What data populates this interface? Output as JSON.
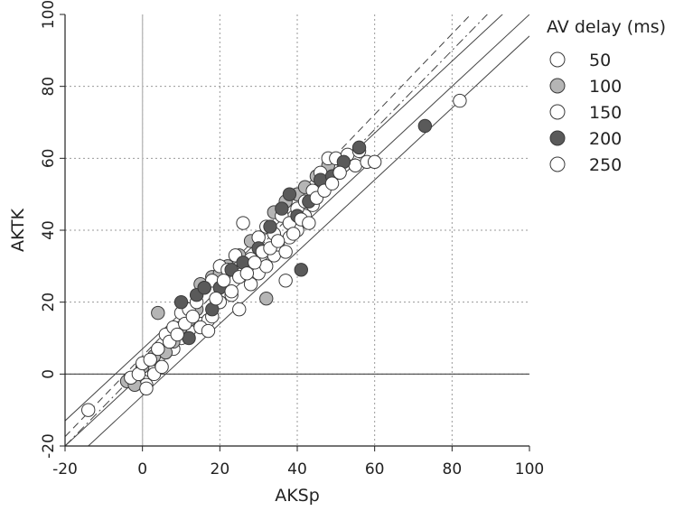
{
  "chart_data": {
    "type": "scatter",
    "title": "",
    "xlabel": "AKSp",
    "ylabel": "AKTK",
    "xlim": [
      -20,
      100
    ],
    "ylim": [
      -20,
      100
    ],
    "x_ticks": [
      -20,
      0,
      20,
      40,
      60,
      80,
      100
    ],
    "y_ticks": [
      -20,
      0,
      20,
      40,
      60,
      80,
      100
    ],
    "x_tick_labels": [
      "-20",
      "0",
      "20",
      "40",
      "60",
      "80",
      "100"
    ],
    "y_tick_labels": [
      "-20",
      "0",
      "20",
      "40",
      "60",
      "80",
      "100"
    ],
    "grid": true,
    "reference_lines": {
      "zero_x": 0,
      "zero_y": 0,
      "parallel_lines": [
        {
          "slope": 1.0,
          "intercept": 0,
          "style": "solid"
        },
        {
          "slope": 1.0,
          "intercept": 7,
          "style": "solid"
        },
        {
          "slope": 1.0,
          "intercept": -6,
          "style": "solid"
        },
        {
          "slope": 1.12,
          "intercept": 5,
          "style": "dashed"
        },
        {
          "slope": 1.1,
          "intercept": 2,
          "style": "dash-dot"
        }
      ]
    },
    "legend": {
      "title": "AV delay (ms)",
      "position": "top-right outside",
      "entries": [
        "50",
        "100",
        "150",
        "200",
        "250"
      ]
    },
    "colors": {
      "50": "#ffffff",
      "100": "#b5b5b5",
      "150": "#ffffff",
      "200": "#5a5a5a",
      "250": "#ffffff"
    },
    "series": [
      {
        "name": "50",
        "points": [
          [
            -14,
            -10
          ],
          [
            1,
            -3
          ],
          [
            2,
            1
          ],
          [
            4,
            4
          ],
          [
            6,
            6
          ],
          [
            8,
            7
          ],
          [
            10,
            10
          ],
          [
            12,
            12
          ],
          [
            15,
            14
          ],
          [
            17,
            15
          ],
          [
            18,
            16
          ],
          [
            20,
            20
          ],
          [
            23,
            22
          ],
          [
            25,
            18
          ],
          [
            28,
            25
          ],
          [
            30,
            28
          ],
          [
            32,
            30
          ],
          [
            34,
            33
          ],
          [
            35,
            36
          ],
          [
            37,
            26
          ],
          [
            38,
            38
          ],
          [
            40,
            40
          ],
          [
            42,
            44
          ],
          [
            44,
            47
          ],
          [
            46,
            52
          ],
          [
            48,
            54
          ],
          [
            50,
            57
          ],
          [
            52,
            58
          ],
          [
            55,
            58
          ],
          [
            58,
            59
          ],
          [
            60,
            59
          ],
          [
            82,
            76
          ]
        ]
      },
      {
        "name": "100",
        "points": [
          [
            -4,
            -2
          ],
          [
            -2,
            -3
          ],
          [
            0,
            2
          ],
          [
            3,
            5
          ],
          [
            4,
            17
          ],
          [
            6,
            6
          ],
          [
            8,
            9
          ],
          [
            10,
            13
          ],
          [
            12,
            15
          ],
          [
            14,
            18
          ],
          [
            15,
            25
          ],
          [
            18,
            27
          ],
          [
            20,
            28
          ],
          [
            22,
            30
          ],
          [
            25,
            33
          ],
          [
            28,
            37
          ],
          [
            32,
            21
          ],
          [
            34,
            45
          ],
          [
            37,
            48
          ],
          [
            40,
            50
          ],
          [
            42,
            52
          ],
          [
            45,
            55
          ],
          [
            48,
            58
          ]
        ]
      },
      {
        "name": "150",
        "points": [
          [
            -3,
            -1
          ],
          [
            -1,
            0
          ],
          [
            0,
            3
          ],
          [
            2,
            4
          ],
          [
            4,
            7
          ],
          [
            6,
            11
          ],
          [
            8,
            13
          ],
          [
            10,
            17
          ],
          [
            12,
            18
          ],
          [
            14,
            20
          ],
          [
            16,
            24
          ],
          [
            18,
            26
          ],
          [
            20,
            30
          ],
          [
            22,
            29
          ],
          [
            24,
            33
          ],
          [
            26,
            42
          ],
          [
            28,
            32
          ],
          [
            30,
            38
          ],
          [
            32,
            41
          ],
          [
            34,
            39
          ],
          [
            36,
            44
          ],
          [
            38,
            42
          ],
          [
            40,
            46
          ],
          [
            42,
            48
          ],
          [
            44,
            51
          ],
          [
            46,
            56
          ],
          [
            48,
            60
          ],
          [
            50,
            60
          ],
          [
            53,
            61
          ],
          [
            56,
            62
          ]
        ]
      },
      {
        "name": "200",
        "points": [
          [
            10,
            20
          ],
          [
            12,
            10
          ],
          [
            14,
            22
          ],
          [
            16,
            24
          ],
          [
            18,
            18
          ],
          [
            20,
            24
          ],
          [
            23,
            29
          ],
          [
            26,
            31
          ],
          [
            30,
            35
          ],
          [
            33,
            41
          ],
          [
            36,
            46
          ],
          [
            38,
            50
          ],
          [
            40,
            44
          ],
          [
            41,
            29
          ],
          [
            43,
            48
          ],
          [
            46,
            54
          ],
          [
            49,
            55
          ],
          [
            52,
            59
          ],
          [
            56,
            63
          ],
          [
            73,
            69
          ]
        ]
      },
      {
        "name": "250",
        "points": [
          [
            1,
            -4
          ],
          [
            3,
            0
          ],
          [
            5,
            2
          ],
          [
            7,
            9
          ],
          [
            9,
            11
          ],
          [
            11,
            14
          ],
          [
            13,
            16
          ],
          [
            15,
            13
          ],
          [
            17,
            12
          ],
          [
            19,
            21
          ],
          [
            21,
            26
          ],
          [
            23,
            23
          ],
          [
            25,
            27
          ],
          [
            27,
            28
          ],
          [
            29,
            31
          ],
          [
            31,
            34
          ],
          [
            33,
            35
          ],
          [
            35,
            37
          ],
          [
            37,
            34
          ],
          [
            39,
            39
          ],
          [
            41,
            43
          ],
          [
            43,
            42
          ],
          [
            45,
            49
          ],
          [
            47,
            51
          ],
          [
            49,
            53
          ],
          [
            51,
            56
          ]
        ]
      }
    ]
  }
}
